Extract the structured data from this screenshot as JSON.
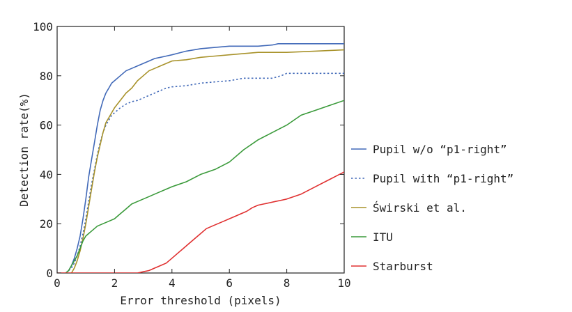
{
  "chart_data": {
    "type": "line",
    "title": "",
    "xlabel": "Error threshold (pixels)",
    "ylabel": "Detection rate(%)",
    "xlim": [
      0,
      10
    ],
    "ylim": [
      0,
      100
    ],
    "xticks": [
      "0",
      "2",
      "4",
      "6",
      "8",
      "10"
    ],
    "yticks": [
      "0",
      "20",
      "40",
      "60",
      "80",
      "100"
    ],
    "grid": false,
    "legend_position": "right",
    "series": [
      {
        "name": "Pupil w/o “p1-right”",
        "color": "#4169b8",
        "dash": "solid",
        "points": [
          [
            0.3,
            0
          ],
          [
            0.4,
            1
          ],
          [
            0.5,
            3
          ],
          [
            0.6,
            6
          ],
          [
            0.7,
            10
          ],
          [
            0.8,
            15
          ],
          [
            0.9,
            22
          ],
          [
            1.0,
            30
          ],
          [
            1.1,
            39
          ],
          [
            1.2,
            46
          ],
          [
            1.3,
            53
          ],
          [
            1.4,
            60
          ],
          [
            1.5,
            66
          ],
          [
            1.6,
            70
          ],
          [
            1.7,
            73
          ],
          [
            1.8,
            75
          ],
          [
            1.9,
            77
          ],
          [
            2.0,
            78
          ],
          [
            2.2,
            80
          ],
          [
            2.4,
            82
          ],
          [
            2.6,
            83
          ],
          [
            2.8,
            84
          ],
          [
            3.0,
            85
          ],
          [
            3.2,
            86
          ],
          [
            3.4,
            87
          ],
          [
            3.6,
            87.5
          ],
          [
            3.8,
            88
          ],
          [
            4.0,
            88.5
          ],
          [
            4.5,
            90
          ],
          [
            5.0,
            91
          ],
          [
            5.5,
            91.5
          ],
          [
            6.0,
            92
          ],
          [
            6.5,
            92
          ],
          [
            7.0,
            92
          ],
          [
            7.5,
            92.5
          ],
          [
            7.7,
            93
          ],
          [
            8.0,
            93
          ],
          [
            9.0,
            93
          ],
          [
            10.0,
            93
          ]
        ]
      },
      {
        "name": "Pupil with “p1-right”",
        "color": "#4169b8",
        "dash": "dotted",
        "points": [
          [
            0.3,
            0
          ],
          [
            0.4,
            1
          ],
          [
            0.5,
            2
          ],
          [
            0.6,
            4
          ],
          [
            0.7,
            7
          ],
          [
            0.8,
            11
          ],
          [
            0.9,
            16
          ],
          [
            1.0,
            22
          ],
          [
            1.1,
            29
          ],
          [
            1.2,
            36
          ],
          [
            1.3,
            42
          ],
          [
            1.4,
            48
          ],
          [
            1.5,
            53
          ],
          [
            1.6,
            57
          ],
          [
            1.7,
            60
          ],
          [
            1.8,
            62
          ],
          [
            1.9,
            64
          ],
          [
            2.0,
            65
          ],
          [
            2.2,
            67
          ],
          [
            2.4,
            68.5
          ],
          [
            2.6,
            69.5
          ],
          [
            2.8,
            70
          ],
          [
            3.0,
            71
          ],
          [
            3.2,
            72
          ],
          [
            3.4,
            73
          ],
          [
            3.6,
            74
          ],
          [
            3.8,
            75
          ],
          [
            4.0,
            75.5
          ],
          [
            4.5,
            76
          ],
          [
            5.0,
            77
          ],
          [
            5.5,
            77.5
          ],
          [
            6.0,
            78
          ],
          [
            6.5,
            79
          ],
          [
            7.0,
            79
          ],
          [
            7.5,
            79
          ],
          [
            7.8,
            80
          ],
          [
            8.0,
            81
          ],
          [
            9.0,
            81
          ],
          [
            10.0,
            81
          ]
        ]
      },
      {
        "name": "Świrski et al.",
        "color": "#a8922a",
        "dash": "solid",
        "points": [
          [
            0.5,
            0
          ],
          [
            0.6,
            2
          ],
          [
            0.7,
            5
          ],
          [
            0.8,
            9
          ],
          [
            0.9,
            14
          ],
          [
            1.0,
            20
          ],
          [
            1.1,
            27
          ],
          [
            1.2,
            34
          ],
          [
            1.3,
            41
          ],
          [
            1.4,
            47
          ],
          [
            1.5,
            52
          ],
          [
            1.6,
            57
          ],
          [
            1.7,
            61
          ],
          [
            1.8,
            63
          ],
          [
            1.9,
            65
          ],
          [
            2.0,
            67
          ],
          [
            2.2,
            70
          ],
          [
            2.4,
            73
          ],
          [
            2.6,
            75
          ],
          [
            2.8,
            78
          ],
          [
            3.0,
            80
          ],
          [
            3.2,
            82
          ],
          [
            3.4,
            83
          ],
          [
            3.6,
            84
          ],
          [
            3.8,
            85
          ],
          [
            4.0,
            86
          ],
          [
            4.5,
            86.5
          ],
          [
            5.0,
            87.5
          ],
          [
            5.5,
            88
          ],
          [
            6.0,
            88.5
          ],
          [
            6.5,
            89
          ],
          [
            7.0,
            89.5
          ],
          [
            8.0,
            89.5
          ],
          [
            9.0,
            90
          ],
          [
            10.0,
            90.5
          ]
        ]
      },
      {
        "name": "ITU",
        "color": "#3a9a3a",
        "dash": "solid",
        "points": [
          [
            0.3,
            0
          ],
          [
            0.4,
            1
          ],
          [
            0.5,
            3
          ],
          [
            0.6,
            5
          ],
          [
            0.7,
            7
          ],
          [
            0.8,
            10
          ],
          [
            0.9,
            13
          ],
          [
            1.0,
            15
          ],
          [
            1.2,
            17
          ],
          [
            1.4,
            19
          ],
          [
            1.6,
            20
          ],
          [
            1.8,
            21
          ],
          [
            2.0,
            22
          ],
          [
            2.2,
            24
          ],
          [
            2.4,
            26
          ],
          [
            2.6,
            28
          ],
          [
            2.8,
            29
          ],
          [
            3.0,
            30
          ],
          [
            3.2,
            31
          ],
          [
            3.4,
            32
          ],
          [
            3.6,
            33
          ],
          [
            3.8,
            34
          ],
          [
            4.0,
            35
          ],
          [
            4.5,
            37
          ],
          [
            5.0,
            40
          ],
          [
            5.5,
            42
          ],
          [
            6.0,
            45
          ],
          [
            6.5,
            50
          ],
          [
            7.0,
            54
          ],
          [
            7.5,
            57
          ],
          [
            8.0,
            60
          ],
          [
            8.5,
            64
          ],
          [
            9.0,
            66
          ],
          [
            9.5,
            68
          ],
          [
            10.0,
            70
          ]
        ]
      },
      {
        "name": "Starburst",
        "color": "#e03030",
        "dash": "solid",
        "points": [
          [
            0,
            0
          ],
          [
            2.8,
            0
          ],
          [
            3.0,
            0.5
          ],
          [
            3.2,
            1
          ],
          [
            3.4,
            2
          ],
          [
            3.6,
            3
          ],
          [
            3.8,
            4
          ],
          [
            4.0,
            6
          ],
          [
            4.2,
            8
          ],
          [
            4.4,
            10
          ],
          [
            4.6,
            12
          ],
          [
            4.8,
            14
          ],
          [
            5.0,
            16
          ],
          [
            5.2,
            18
          ],
          [
            5.4,
            19
          ],
          [
            5.6,
            20
          ],
          [
            5.8,
            21
          ],
          [
            6.0,
            22
          ],
          [
            6.2,
            23
          ],
          [
            6.4,
            24
          ],
          [
            6.6,
            25
          ],
          [
            6.8,
            26.5
          ],
          [
            7.0,
            27.5
          ],
          [
            7.2,
            28
          ],
          [
            7.4,
            28.5
          ],
          [
            7.6,
            29
          ],
          [
            7.8,
            29.5
          ],
          [
            8.0,
            30
          ],
          [
            8.5,
            32
          ],
          [
            9.0,
            35
          ],
          [
            9.5,
            38
          ],
          [
            10.0,
            41
          ]
        ]
      }
    ]
  }
}
